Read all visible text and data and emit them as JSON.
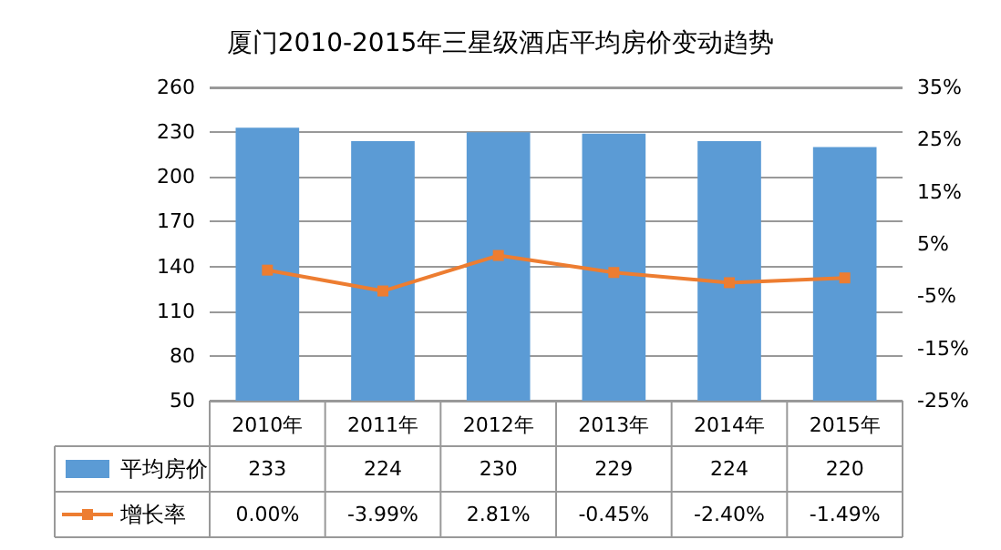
{
  "chart_data": {
    "type": "bar",
    "title": "厦门2010-2015年三星级酒店平均房价变动趋势",
    "categories": [
      "2010年",
      "2011年",
      "2012年",
      "2013年",
      "2014年",
      "2015年"
    ],
    "series": [
      {
        "name": "平均房价",
        "color": "#5b9bd5",
        "values": [
          233,
          224,
          230,
          229,
          224,
          220
        ],
        "value_labels": [
          "233",
          "224",
          "230",
          "229",
          "224",
          "220"
        ]
      },
      {
        "name": "增长率",
        "type": "line",
        "axis": "y2",
        "color": "#ed7d31",
        "marker": "square",
        "values": [
          0.0,
          -3.99,
          2.81,
          -0.45,
          -2.4,
          -1.49
        ],
        "value_labels": [
          "0.00%",
          "-3.99%",
          "2.81%",
          "-0.45%",
          "-2.40%",
          "-1.49%"
        ]
      }
    ],
    "ylim": [
      50,
      260
    ],
    "yticks": [
      50,
      80,
      110,
      140,
      170,
      200,
      230,
      260
    ],
    "y2lim": [
      -25,
      35
    ],
    "y2ticks": [
      {
        "value": -25,
        "label": "-25%"
      },
      {
        "value": -15,
        "label": "-15%"
      },
      {
        "value": -5,
        "label": "-5%"
      },
      {
        "value": 5,
        "label": "5%"
      },
      {
        "value": 15,
        "label": "15%"
      },
      {
        "value": 25,
        "label": "25%"
      },
      {
        "value": 35,
        "label": "35%"
      }
    ],
    "grid": "y",
    "legend": "bottom"
  }
}
